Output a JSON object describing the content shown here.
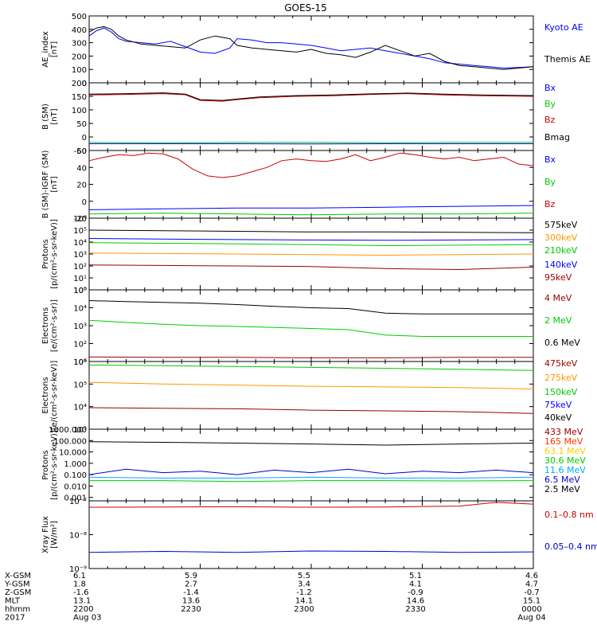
{
  "title": "GOES-15",
  "chart_data": [
    {
      "type": "line",
      "ylabel": [
        "AE_index",
        "[nT]"
      ],
      "yscale": "linear",
      "ylim": [
        0,
        500
      ],
      "yticks": [
        0,
        100,
        200,
        300,
        400,
        500
      ],
      "ytick_labels": [
        "0",
        "100",
        "200",
        "300",
        "400",
        "500"
      ],
      "series": [
        {
          "name": "Kyoto AE",
          "color": "#0000ff",
          "x": [
            0,
            2,
            4,
            6,
            8,
            10,
            14,
            18,
            22,
            26,
            30,
            34,
            38,
            40,
            44,
            48,
            52,
            56,
            60,
            64,
            68,
            72,
            76,
            80,
            84,
            88,
            92,
            96,
            100,
            104,
            108,
            112,
            116,
            120
          ],
          "y": [
            350,
            390,
            410,
            380,
            330,
            310,
            300,
            290,
            310,
            270,
            230,
            220,
            260,
            330,
            320,
            300,
            300,
            290,
            280,
            260,
            240,
            250,
            260,
            240,
            220,
            200,
            180,
            150,
            140,
            130,
            120,
            110,
            115,
            120
          ]
        },
        {
          "name": "Themis AE",
          "color": "#000000",
          "x": [
            0,
            2,
            4,
            6,
            8,
            10,
            14,
            18,
            22,
            26,
            30,
            34,
            38,
            40,
            44,
            48,
            52,
            56,
            60,
            64,
            68,
            72,
            76,
            80,
            84,
            88,
            92,
            96,
            100,
            104,
            108,
            112,
            116,
            120
          ],
          "y": [
            380,
            410,
            420,
            400,
            350,
            320,
            290,
            280,
            270,
            260,
            320,
            350,
            330,
            280,
            260,
            250,
            240,
            230,
            250,
            220,
            210,
            190,
            230,
            280,
            240,
            200,
            220,
            160,
            130,
            120,
            110,
            100,
            110,
            120
          ]
        }
      ]
    },
    {
      "type": "line",
      "ylabel": [
        "B (SM)",
        "[nT]"
      ],
      "yscale": "linear",
      "ylim": [
        -50,
        200
      ],
      "yticks": [
        -50,
        0,
        50,
        100,
        150,
        200
      ],
      "ytick_labels": [
        "-50",
        "0",
        "50",
        "100",
        "150",
        "200"
      ],
      "series": [
        {
          "name": "Bx",
          "color": "#0000ff",
          "x": [
            0,
            20,
            40,
            60,
            80,
            100,
            120
          ],
          "y": [
            -25,
            -25,
            -25,
            -26,
            -25,
            -25,
            -25
          ]
        },
        {
          "name": "By",
          "color": "#00cc00",
          "x": [
            0,
            20,
            40,
            60,
            80,
            100,
            120
          ],
          "y": [
            -20,
            -21,
            -20,
            -20,
            -21,
            -20,
            -20
          ]
        },
        {
          "name": "Bz",
          "color": "#cc0000",
          "x": [
            0,
            10,
            20,
            26,
            30,
            36,
            40,
            46,
            56,
            66,
            76,
            86,
            96,
            106,
            120
          ],
          "y": [
            155,
            157,
            160,
            156,
            135,
            132,
            138,
            145,
            150,
            152,
            157,
            160,
            155,
            152,
            150
          ]
        },
        {
          "name": "Bmag",
          "color": "#000000",
          "x": [
            0,
            10,
            20,
            26,
            30,
            36,
            40,
            46,
            56,
            66,
            76,
            86,
            96,
            106,
            120
          ],
          "y": [
            158,
            160,
            163,
            158,
            138,
            135,
            140,
            148,
            153,
            155,
            159,
            162,
            158,
            155,
            153
          ]
        }
      ]
    },
    {
      "type": "line",
      "ylabel": [
        "B (SM)-IGRF (SM)",
        "[nT]"
      ],
      "yscale": "linear",
      "ylim": [
        -20,
        60
      ],
      "yticks": [
        -20,
        0,
        20,
        40,
        60
      ],
      "ytick_labels": [
        "-20",
        "0",
        "20",
        "40",
        "60"
      ],
      "series": [
        {
          "name": "Bx",
          "color": "#0000ff",
          "x": [
            0,
            20,
            40,
            60,
            80,
            100,
            120
          ],
          "y": [
            -10,
            -9,
            -8,
            -8,
            -7,
            -6,
            -5
          ]
        },
        {
          "name": "By",
          "color": "#00cc00",
          "x": [
            0,
            20,
            40,
            60,
            80,
            100,
            120
          ],
          "y": [
            -15,
            -14,
            -15,
            -16,
            -15,
            -15,
            -14
          ]
        },
        {
          "name": "Bz",
          "color": "#cc0000",
          "x": [
            0,
            4,
            8,
            12,
            16,
            20,
            24,
            28,
            32,
            36,
            40,
            44,
            48,
            52,
            56,
            60,
            64,
            68,
            72,
            76,
            80,
            84,
            88,
            92,
            96,
            100,
            104,
            108,
            112,
            116,
            120
          ],
          "y": [
            48,
            52,
            55,
            54,
            57,
            56,
            50,
            38,
            30,
            28,
            30,
            35,
            40,
            48,
            50,
            48,
            47,
            50,
            55,
            48,
            52,
            57,
            55,
            52,
            50,
            52,
            48,
            50,
            52,
            44,
            42
          ]
        }
      ]
    },
    {
      "type": "line",
      "ylabel": [
        "Protons",
        "[p/(cm²-s-sr-keV)]"
      ],
      "yscale": "log",
      "ylim": [
        1,
        1000000
      ],
      "yticks": [
        1,
        10,
        100,
        1000,
        10000,
        100000,
        1000000
      ],
      "ytick_labels": [
        "10⁰",
        "10¹",
        "10²",
        "10³",
        "10⁴",
        "10⁵",
        "10⁶"
      ],
      "series": [
        {
          "name": "575keV",
          "color": "#000000",
          "x": [
            0,
            20,
            40,
            60,
            80,
            100,
            120
          ],
          "y": [
            100000,
            90000,
            80000,
            70000,
            70000,
            65000,
            60000
          ]
        },
        {
          "name": "300keV",
          "color": "#ff9900",
          "x": [
            0,
            20,
            40,
            60,
            80,
            100,
            120
          ],
          "y": [
            1200,
            1100,
            1000,
            900,
            800,
            900,
            1000
          ]
        },
        {
          "name": "210keV",
          "color": "#00cc00",
          "x": [
            0,
            20,
            40,
            60,
            80,
            100,
            120
          ],
          "y": [
            9000,
            8000,
            7000,
            6000,
            5000,
            5500,
            6000
          ]
        },
        {
          "name": "140keV",
          "color": "#0000ff",
          "x": [
            0,
            20,
            40,
            60,
            80,
            100,
            120
          ],
          "y": [
            20000,
            18000,
            16000,
            15000,
            14000,
            15000,
            16000
          ]
        },
        {
          "name": "95keV",
          "color": "#990000",
          "x": [
            0,
            20,
            40,
            60,
            80,
            100,
            120
          ],
          "y": [
            120,
            110,
            100,
            90,
            60,
            50,
            80
          ]
        }
      ]
    },
    {
      "type": "line",
      "ylabel": [
        "Electrons",
        "[e/(cm²-s-sr)]"
      ],
      "yscale": "log",
      "ylim": [
        10,
        100000
      ],
      "yticks": [
        10,
        100,
        1000,
        10000,
        100000
      ],
      "ytick_labels": [
        "10¹",
        "10²",
        "10³",
        "10⁴",
        "10⁵"
      ],
      "series": [
        {
          "name": "4 MeV",
          "color": "#990000",
          "x": [
            0,
            20,
            40,
            60,
            80,
            100,
            120
          ],
          "y": [
            18,
            17,
            17,
            16,
            16,
            17,
            17
          ]
        },
        {
          "name": "2 MeV",
          "color": "#00cc00",
          "x": [
            0,
            10,
            20,
            30,
            40,
            50,
            60,
            70,
            80,
            90,
            100,
            110,
            120
          ],
          "y": [
            2000,
            1500,
            1200,
            1000,
            900,
            800,
            700,
            600,
            300,
            250,
            250,
            250,
            250
          ]
        },
        {
          "name": "0.6 MeV",
          "color": "#000000",
          "x": [
            0,
            10,
            20,
            30,
            40,
            50,
            60,
            70,
            80,
            90,
            100,
            110,
            120
          ],
          "y": [
            25000,
            22000,
            20000,
            18000,
            15000,
            12000,
            10000,
            9000,
            5000,
            4500,
            4500,
            4500,
            4500
          ]
        }
      ]
    },
    {
      "type": "line",
      "ylabel": [
        "Electrons",
        "[e/(cm²-s-sr-keV)]"
      ],
      "yscale": "log",
      "ylim": [
        1000,
        1000000
      ],
      "yticks": [
        1000,
        10000,
        100000,
        1000000
      ],
      "ytick_labels": [
        "10³",
        "10⁴",
        "10⁵",
        "10⁶"
      ],
      "series": [
        {
          "name": "475keV",
          "color": "#990000",
          "x": [
            0,
            20,
            40,
            60,
            80,
            100,
            120
          ],
          "y": [
            9000,
            8500,
            8000,
            7000,
            6500,
            6000,
            5000
          ]
        },
        {
          "name": "275keV",
          "color": "#ff9900",
          "x": [
            0,
            20,
            40,
            60,
            80,
            100,
            120
          ],
          "y": [
            120000,
            100000,
            90000,
            80000,
            75000,
            70000,
            60000
          ]
        },
        {
          "name": "150keV",
          "color": "#00cc00",
          "x": [
            0,
            20,
            40,
            60,
            80,
            100,
            120
          ],
          "y": [
            700000,
            650000,
            600000,
            550000,
            500000,
            450000,
            400000
          ]
        },
        {
          "name": "75keV",
          "color": "#0000ff",
          "x": [],
          "y": []
        },
        {
          "name": "40keV",
          "color": "#000000",
          "x": [],
          "y": []
        }
      ]
    },
    {
      "type": "line",
      "ylabel": [
        "Protons",
        "[p/(cm²-s-sr-keV)]"
      ],
      "yscale": "log",
      "ylim": [
        0.0005,
        1000
      ],
      "yticks": [
        0.001,
        0.01,
        0.1,
        1,
        10,
        100,
        1000
      ],
      "ytick_labels": [
        "0.001",
        "0.010",
        "0.100",
        "1.000",
        "10.000",
        "100.000",
        "1000.000"
      ],
      "series": [
        {
          "name": "433 MeV",
          "color": "#990000",
          "x": [],
          "y": []
        },
        {
          "name": "165 MeV",
          "color": "#ff3300",
          "x": [],
          "y": []
        },
        {
          "name": "63.1 MeV",
          "color": "#ffcc00",
          "x": [],
          "y": []
        },
        {
          "name": "30.6 MeV",
          "color": "#00cc00",
          "x": [
            0,
            20,
            40,
            60,
            80,
            100,
            120
          ],
          "y": [
            0.03,
            0.03,
            0.025,
            0.03,
            0.03,
            0.028,
            0.03
          ]
        },
        {
          "name": "11.6 MeV",
          "color": "#00aaff",
          "x": [
            0,
            20,
            40,
            60,
            80,
            100,
            120
          ],
          "y": [
            0.06,
            0.05,
            0.05,
            0.06,
            0.05,
            0.05,
            0.06
          ]
        },
        {
          "name": "6.5 MeV",
          "color": "#0000cc",
          "x": [
            0,
            10,
            20,
            30,
            40,
            50,
            60,
            70,
            80,
            90,
            100,
            110,
            120
          ],
          "y": [
            0.1,
            0.3,
            0.15,
            0.2,
            0.1,
            0.25,
            0.15,
            0.3,
            0.12,
            0.2,
            0.15,
            0.25,
            0.15
          ]
        },
        {
          "name": "2.5 MeV",
          "color": "#000000",
          "x": [
            0,
            20,
            40,
            60,
            80,
            100,
            120
          ],
          "y": [
            80,
            70,
            60,
            50,
            40,
            50,
            60
          ]
        }
      ]
    },
    {
      "type": "line",
      "ylabel": [
        "Xray Flux",
        "[W/m²]"
      ],
      "yscale": "log",
      "ylim": [
        1e-09,
        1e-07
      ],
      "yticks": [
        1e-09,
        1e-08,
        1e-07
      ],
      "ytick_labels": [
        "10⁻⁹",
        "10⁻⁸",
        "10⁻⁷"
      ],
      "series": [
        {
          "name": "0.1–0.8 nm",
          "color": "#cc0000",
          "x": [
            0,
            20,
            40,
            60,
            80,
            100,
            110,
            120
          ],
          "y": [
            6.5e-08,
            6.6e-08,
            6.7e-08,
            6.5e-08,
            6.6e-08,
            7e-08,
            9e-08,
            8e-08
          ]
        },
        {
          "name": "0.05–0.4 nm",
          "color": "#0000cc",
          "x": [
            0,
            20,
            40,
            60,
            80,
            100,
            120
          ],
          "y": [
            3e-09,
            3.2e-09,
            3e-09,
            3.3e-09,
            3.2e-09,
            3e-09,
            3.1e-09
          ]
        }
      ]
    }
  ],
  "footer": {
    "row_labels": [
      "X-GSM",
      "Y-GSM",
      "Z-GSM",
      "MLT",
      "hhmm",
      "2017"
    ],
    "columns": [
      [
        "6.1",
        "1.8",
        "-1.6",
        "13.1",
        "2200",
        "Aug 03"
      ],
      [
        "5.9",
        "2.7",
        "-1.4",
        "13.6",
        "2230",
        ""
      ],
      [
        "5.5",
        "3.4",
        "-1.2",
        "14.1",
        "2300",
        ""
      ],
      [
        "5.1",
        "4.1",
        "-0.9",
        "14.6",
        "2330",
        ""
      ],
      [
        "4.6",
        "4.7",
        "-0.7",
        "15.1",
        "0000",
        "Aug 04"
      ]
    ]
  },
  "colors": {
    "axis": "#000000",
    "background": "#ffffff"
  }
}
